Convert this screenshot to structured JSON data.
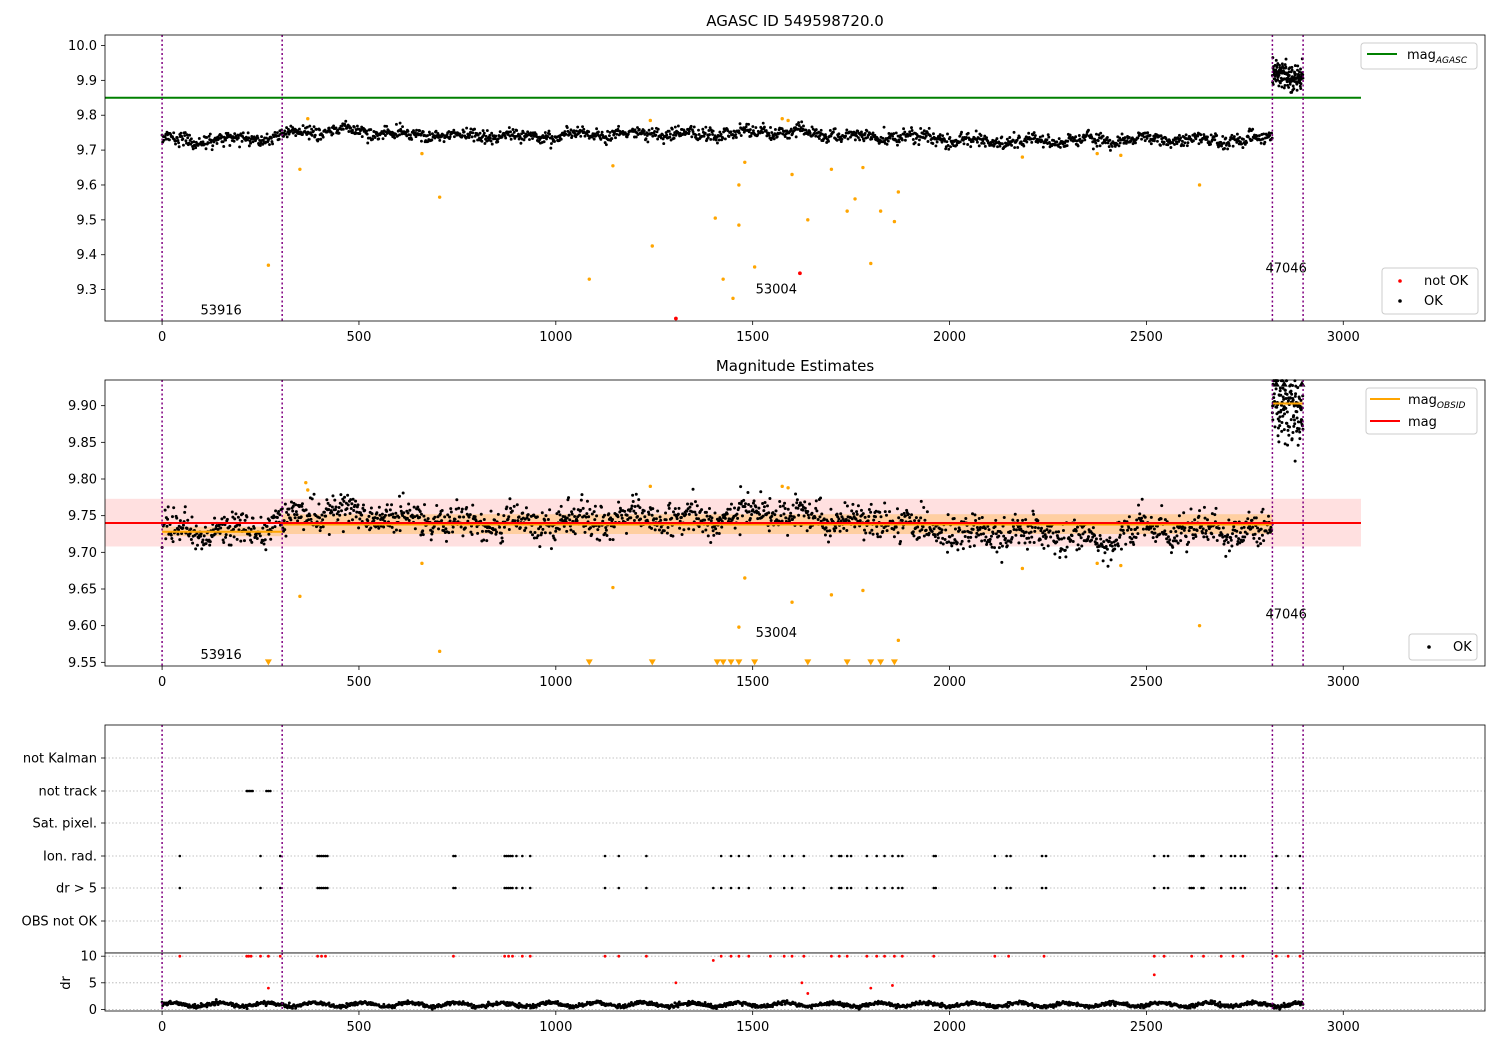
{
  "colors": {
    "ok": "#000000",
    "not_ok": "#ff0000",
    "flagged": "#ffa500",
    "mag_agasc": "#008000",
    "mag_obsid": "#ffa500",
    "mag": "#ff0000",
    "obsid_boundary": "#800080"
  },
  "chart_data": [
    {
      "type": "scatter",
      "title": "AGASC ID 549598720.0",
      "xlabel": "",
      "ylabel": "",
      "xlim": [
        -145,
        3360
      ],
      "ylim": [
        9.21,
        10.03
      ],
      "xticks": [
        0,
        500,
        1000,
        1500,
        2000,
        2500,
        3000
      ],
      "yticks": [
        "9.3",
        "9.4",
        "9.5",
        "9.6",
        "9.7",
        "9.8",
        "9.9",
        "10.0"
      ],
      "grid": false,
      "legend_placement": [
        "top-right",
        "bottom-right"
      ],
      "legend": [
        "mag$_{AGASC}$",
        "not OK",
        "OK"
      ],
      "lines": [
        {
          "name": "mag_AGASC",
          "y": 9.85,
          "x_range": [
            -145,
            3045
          ]
        }
      ],
      "obsid_boundaries": [
        0,
        305,
        2820,
        2898
      ],
      "obsid_labels": [
        {
          "text": "53916",
          "x": 150,
          "y": 9.24
        },
        {
          "text": "53004",
          "x": 1560,
          "y": 9.3
        },
        {
          "text": "47046",
          "x": 2855,
          "y": 9.36
        }
      ],
      "series": [
        {
          "name": "OK",
          "marker": "dot",
          "segments": [
            {
              "x_range": [
                0,
                2820
              ],
              "base": [
                [
                  0,
                  9.735
                ],
                [
                  80,
                  9.725
                ],
                [
                  280,
                  9.735
                ],
                [
                  380,
                  9.755
                ],
                [
                  500,
                  9.755
                ],
                [
                  600,
                  9.745
                ],
                [
                  800,
                  9.74
                ],
                [
                  1000,
                  9.74
                ],
                [
                  1200,
                  9.75
                ],
                [
                  1400,
                  9.745
                ],
                [
                  1500,
                  9.755
                ],
                [
                  1700,
                  9.745
                ],
                [
                  1900,
                  9.735
                ],
                [
                  2100,
                  9.725
                ],
                [
                  2300,
                  9.725
                ],
                [
                  2450,
                  9.73
                ],
                [
                  2820,
                  9.73
                ]
              ],
              "noise": 0.009
            },
            {
              "x_range": [
                2820,
                2898
              ],
              "base": [
                [
                  2820,
                  9.935
                ],
                [
                  2898,
                  9.905
                ]
              ],
              "noise": 0.02
            }
          ]
        },
        {
          "name": "not OK",
          "points": [
            [
              1305,
              9.217
            ],
            [
              1620,
              9.347
            ]
          ]
        },
        {
          "name": "flagged",
          "points": [
            [
              270,
              9.37
            ],
            [
              350,
              9.645
            ],
            [
              370,
              9.79
            ],
            [
              660,
              9.69
            ],
            [
              705,
              9.565
            ],
            [
              1085,
              9.33
            ],
            [
              1145,
              9.655
            ],
            [
              1240,
              9.785
            ],
            [
              1245,
              9.425
            ],
            [
              1405,
              9.505
            ],
            [
              1425,
              9.33
            ],
            [
              1450,
              9.275
            ],
            [
              1465,
              9.6
            ],
            [
              1465,
              9.485
            ],
            [
              1480,
              9.665
            ],
            [
              1505,
              9.365
            ],
            [
              1575,
              9.79
            ],
            [
              1590,
              9.785
            ],
            [
              1600,
              9.63
            ],
            [
              1640,
              9.5
            ],
            [
              1700,
              9.645
            ],
            [
              1740,
              9.525
            ],
            [
              1760,
              9.56
            ],
            [
              1780,
              9.65
            ],
            [
              1800,
              9.375
            ],
            [
              1825,
              9.525
            ],
            [
              1860,
              9.495
            ],
            [
              1870,
              9.58
            ],
            [
              2185,
              9.68
            ],
            [
              2375,
              9.69
            ],
            [
              2435,
              9.685
            ],
            [
              2635,
              9.6
            ]
          ]
        }
      ]
    },
    {
      "type": "scatter",
      "title": "Magnitude Estimates",
      "xlabel": "",
      "ylabel": "",
      "xlim": [
        -145,
        3360
      ],
      "ylim": [
        9.545,
        9.935
      ],
      "xticks": [
        0,
        500,
        1000,
        1500,
        2000,
        2500,
        3000
      ],
      "yticks": [
        "9.55",
        "9.60",
        "9.65",
        "9.70",
        "9.75",
        "9.80",
        "9.85",
        "9.90"
      ],
      "grid": false,
      "legend_placement": [
        "top-right",
        "bottom-right"
      ],
      "legend": [
        "mag$_{OBSID}$",
        "mag",
        "OK"
      ],
      "obsid_boundaries": [
        0,
        305,
        2820,
        2898
      ],
      "obsid_labels": [
        {
          "text": "53916",
          "x": 150,
          "y": 9.56
        },
        {
          "text": "53004",
          "x": 1560,
          "y": 9.59
        },
        {
          "text": "47046",
          "x": 2855,
          "y": 9.615
        }
      ],
      "mag": {
        "value": 9.74,
        "band": [
          9.708,
          9.773
        ],
        "x_range": [
          -145,
          3045
        ]
      },
      "mag_obsid": [
        {
          "x_range": [
            0,
            305
          ],
          "value": 9.728,
          "band": [
            9.722,
            9.735
          ]
        },
        {
          "x_range": [
            305,
            2820
          ],
          "value": 9.738,
          "band": [
            9.725,
            9.752
          ]
        },
        {
          "x_range": [
            2820,
            2898
          ],
          "value": 9.903,
          "band": [
            9.9,
            9.906
          ]
        }
      ],
      "series": [
        {
          "name": "OK",
          "marker": "dot",
          "segments": [
            {
              "x_range": [
                0,
                2820
              ],
              "base": [
                [
                  0,
                  9.735
                ],
                [
                  80,
                  9.725
                ],
                [
                  280,
                  9.735
                ],
                [
                  380,
                  9.755
                ],
                [
                  500,
                  9.755
                ],
                [
                  600,
                  9.745
                ],
                [
                  800,
                  9.74
                ],
                [
                  1000,
                  9.74
                ],
                [
                  1200,
                  9.75
                ],
                [
                  1400,
                  9.745
                ],
                [
                  1500,
                  9.755
                ],
                [
                  1700,
                  9.745
                ],
                [
                  1900,
                  9.735
                ],
                [
                  2100,
                  9.725
                ],
                [
                  2300,
                  9.725
                ],
                [
                  2400,
                  9.712
                ],
                [
                  2450,
                  9.73
                ],
                [
                  2820,
                  9.73
                ]
              ],
              "noise": 0.011
            },
            {
              "x_range": [
                2820,
                2898
              ],
              "base": [
                [
                  2820,
                  9.925
                ],
                [
                  2898,
                  9.885
                ]
              ],
              "noise": 0.025
            }
          ]
        },
        {
          "name": "flagged",
          "points": [
            [
              350,
              9.64
            ],
            [
              365,
              9.795
            ],
            [
              370,
              9.785
            ],
            [
              660,
              9.685
            ],
            [
              705,
              9.565
            ],
            [
              1145,
              9.652
            ],
            [
              1240,
              9.79
            ],
            [
              1465,
              9.598
            ],
            [
              1480,
              9.665
            ],
            [
              1575,
              9.79
            ],
            [
              1590,
              9.788
            ],
            [
              1600,
              9.632
            ],
            [
              1700,
              9.642
            ],
            [
              1780,
              9.648
            ],
            [
              1870,
              9.58
            ],
            [
              2185,
              9.678
            ],
            [
              2375,
              9.685
            ],
            [
              2435,
              9.682
            ],
            [
              2635,
              9.6
            ]
          ]
        },
        {
          "name": "below range",
          "marker": "triangle-down",
          "points": [
            [
              270,
              9.55
            ],
            [
              1085,
              9.55
            ],
            [
              1245,
              9.55
            ],
            [
              1410,
              9.55
            ],
            [
              1425,
              9.55
            ],
            [
              1445,
              9.55
            ],
            [
              1465,
              9.55
            ],
            [
              1505,
              9.55
            ],
            [
              1640,
              9.55
            ],
            [
              1740,
              9.55
            ],
            [
              1800,
              9.55
            ],
            [
              1825,
              9.55
            ],
            [
              1860,
              9.55
            ]
          ]
        },
        {
          "name": "above range",
          "marker": "triangle-up",
          "points": [
            [
              2830,
              9.93
            ],
            [
              2850,
              9.93
            ],
            [
              2895,
              9.93
            ]
          ]
        }
      ]
    },
    {
      "type": "scatter",
      "title": "",
      "xlabel": "",
      "ylabel": "",
      "xlim": [
        -145,
        3360
      ],
      "flag_rows": [
        "not Kalman",
        "not track",
        "Sat. pixel.",
        "Ion. rad.",
        "dr > 5",
        "OBS not OK"
      ],
      "grid": true,
      "obsid_boundaries": [
        0,
        305,
        2820,
        2898
      ],
      "flag_points": {
        "not track": [
          215,
          218,
          222,
          226,
          230,
          265,
          270,
          275
        ],
        "Ion. rad.": [
          45,
          250,
          300,
          395,
          400,
          405,
          410,
          415,
          420,
          740,
          745,
          870,
          875,
          880,
          885,
          890,
          900,
          915,
          935,
          1125,
          1160,
          1230,
          1420,
          1445,
          1465,
          1490,
          1545,
          1580,
          1600,
          1630,
          1700,
          1720,
          1725,
          1740,
          1750,
          1790,
          1815,
          1835,
          1855,
          1870,
          1880,
          1960,
          1965,
          2115,
          2145,
          2155,
          2235,
          2245,
          2520,
          2545,
          2555,
          2610,
          2615,
          2620,
          2640,
          2645,
          2690,
          2715,
          2725,
          2740,
          2750,
          2830,
          2860,
          2890
        ],
        "dr > 5": [
          45,
          250,
          300,
          395,
          400,
          405,
          410,
          415,
          420,
          740,
          745,
          870,
          875,
          880,
          885,
          890,
          900,
          915,
          935,
          1125,
          1160,
          1230,
          1400,
          1420,
          1445,
          1465,
          1490,
          1545,
          1580,
          1600,
          1630,
          1700,
          1720,
          1725,
          1740,
          1750,
          1790,
          1815,
          1835,
          1855,
          1870,
          1880,
          1960,
          1965,
          2115,
          2145,
          2155,
          2235,
          2245,
          2520,
          2545,
          2555,
          2610,
          2615,
          2620,
          2640,
          2645,
          2690,
          2715,
          2725,
          2740,
          2750,
          2830,
          2860,
          2890
        ]
      }
    },
    {
      "type": "scatter",
      "title": "",
      "xlabel": "",
      "ylabel": "dr",
      "xlim": [
        -145,
        3360
      ],
      "ylim": [
        -0.3,
        10.6
      ],
      "xticks": [
        0,
        500,
        1000,
        1500,
        2000,
        2500,
        3000
      ],
      "yticks": [
        "0",
        "5",
        "10"
      ],
      "grid": true,
      "series": [
        {
          "name": "dr",
          "marker": "dot",
          "x_range": [
            0,
            2898
          ],
          "mean": 0.9,
          "spread": 0.7
        },
        {
          "name": "large dr",
          "points": [
            [
              45,
              10
            ],
            [
              215,
              10
            ],
            [
              220,
              10
            ],
            [
              226,
              10
            ],
            [
              250,
              10
            ],
            [
              270,
              10
            ],
            [
              300,
              10
            ],
            [
              395,
              10
            ],
            [
              405,
              10
            ],
            [
              415,
              10
            ],
            [
              740,
              10
            ],
            [
              870,
              10
            ],
            [
              880,
              10
            ],
            [
              890,
              10
            ],
            [
              915,
              10
            ],
            [
              935,
              10
            ],
            [
              1125,
              10
            ],
            [
              1160,
              10
            ],
            [
              1230,
              10
            ],
            [
              1400,
              9.2
            ],
            [
              1420,
              10
            ],
            [
              1445,
              10
            ],
            [
              1465,
              10
            ],
            [
              1490,
              10
            ],
            [
              1545,
              10
            ],
            [
              1580,
              10
            ],
            [
              1600,
              10
            ],
            [
              1630,
              10
            ],
            [
              1700,
              10
            ],
            [
              1720,
              10
            ],
            [
              1740,
              10
            ],
            [
              1790,
              10
            ],
            [
              1815,
              10
            ],
            [
              1835,
              10
            ],
            [
              1860,
              10
            ],
            [
              1880,
              10
            ],
            [
              1960,
              10
            ],
            [
              2115,
              10
            ],
            [
              2150,
              10
            ],
            [
              2240,
              10
            ],
            [
              2520,
              10
            ],
            [
              2545,
              10
            ],
            [
              2615,
              10
            ],
            [
              2645,
              10
            ],
            [
              2690,
              10
            ],
            [
              2720,
              10
            ],
            [
              2745,
              10
            ],
            [
              2830,
              10
            ],
            [
              2860,
              10
            ],
            [
              2890,
              10
            ],
            [
              2520,
              6.5
            ],
            [
              1625,
              5
            ],
            [
              1305,
              5
            ],
            [
              270,
              4
            ],
            [
              1640,
              3
            ],
            [
              1800,
              4
            ],
            [
              1855,
              4.5
            ]
          ]
        }
      ]
    }
  ]
}
